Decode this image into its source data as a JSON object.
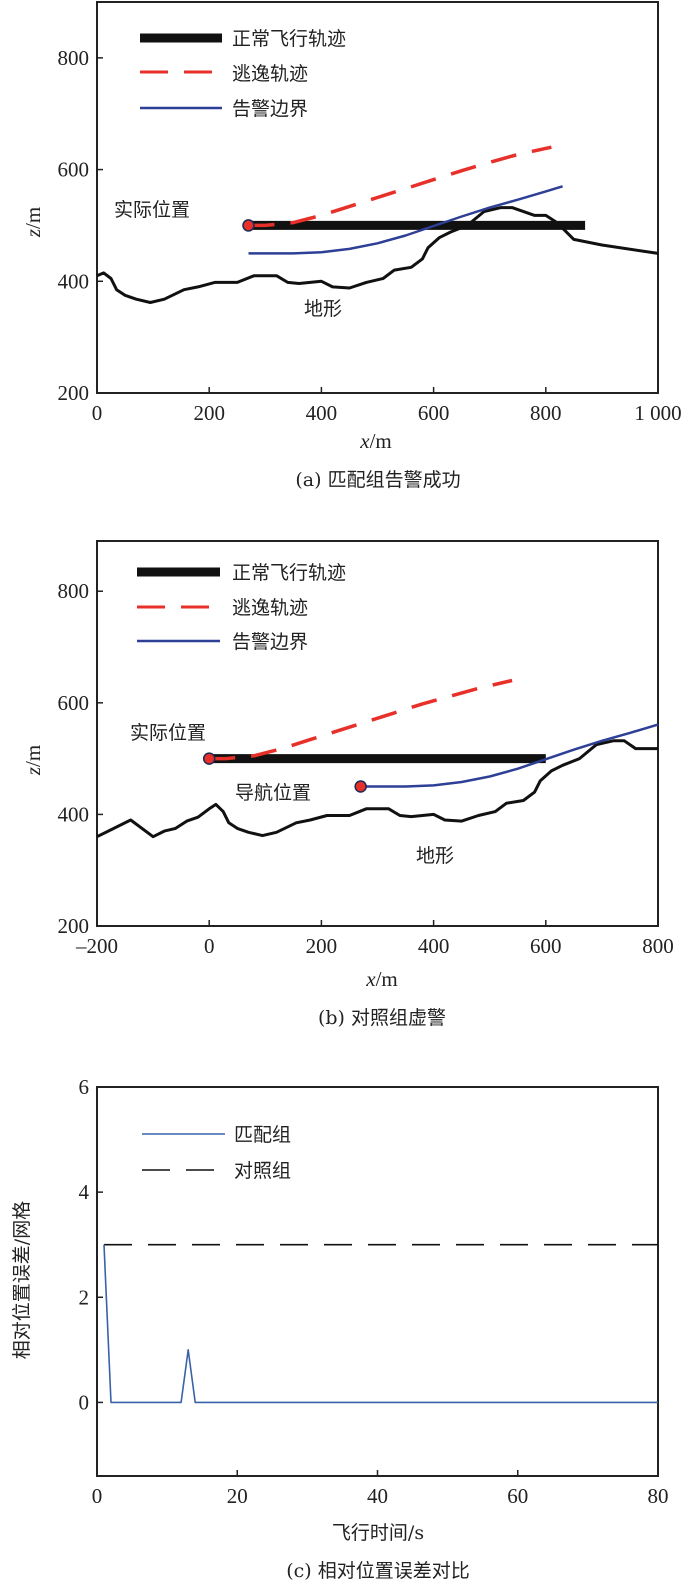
{
  "colors": {
    "normal": "#111111",
    "escape": "#e8302a",
    "boundary": "#2e3f96",
    "terrain": "#111111",
    "marker_fill": "#e8302a",
    "matched": "#3a62a8",
    "control": "#111111"
  },
  "chart_data": [
    {
      "type": "line",
      "caption": "(a) 匹配组告警成功",
      "xlabel_italic": "x",
      "xlabel_unit": "/m",
      "ylabel_italic": "z",
      "ylabel_unit": "/m",
      "xlim": [
        0,
        1000
      ],
      "ylim": [
        200,
        900
      ],
      "xticks": [
        0,
        200,
        400,
        600,
        800,
        1000
      ],
      "xtick_labels": [
        "0",
        "200",
        "400",
        "600",
        "800",
        "1 000"
      ],
      "yticks": [
        200,
        400,
        600,
        800
      ],
      "ytick_labels": [
        "200",
        "400",
        "600",
        "800"
      ],
      "legend": [
        "正常飞行轨迹",
        "逃逸轨迹",
        "告警边界"
      ],
      "legend_position": "top-left",
      "annotations": {
        "actual_position": "实际位置",
        "terrain": "地形"
      },
      "series": {
        "normal": {
          "x": [
            270,
            870
          ],
          "y": [
            500,
            500
          ]
        },
        "escape": {
          "x": [
            270,
            300,
            350,
            400,
            450,
            500,
            550,
            600,
            650,
            700,
            750,
            810
          ],
          "y": [
            500,
            500,
            505,
            518,
            534,
            550,
            566,
            582,
            598,
            613,
            627,
            640
          ]
        },
        "boundary": {
          "x": [
            270,
            300,
            350,
            400,
            450,
            500,
            550,
            600,
            650,
            700,
            750,
            800,
            830
          ],
          "y": [
            450,
            450,
            450,
            452,
            458,
            468,
            482,
            499,
            516,
            532,
            546,
            561,
            570
          ]
        },
        "terrain": {
          "x": [
            0,
            12,
            25,
            35,
            50,
            70,
            95,
            120,
            155,
            180,
            210,
            250,
            280,
            320,
            340,
            360,
            400,
            420,
            450,
            480,
            510,
            530,
            560,
            580,
            590,
            610,
            630,
            660,
            690,
            720,
            740,
            780,
            800,
            820,
            850,
            900,
            1000
          ],
          "y": [
            410,
            415,
            405,
            385,
            375,
            368,
            362,
            368,
            385,
            390,
            398,
            398,
            410,
            410,
            398,
            396,
            400,
            390,
            388,
            398,
            405,
            420,
            425,
            440,
            460,
            478,
            488,
            500,
            525,
            532,
            532,
            518,
            518,
            505,
            475,
            465,
            450
          ]
        },
        "actual_marker": {
          "x": 270,
          "y": 500
        }
      }
    },
    {
      "type": "line",
      "caption": "(b) 对照组虚警",
      "xlabel_italic": "x",
      "xlabel_unit": "/m",
      "ylabel_italic": "z",
      "ylabel_unit": "/m",
      "xlim": [
        -200,
        800
      ],
      "ylim": [
        200,
        890
      ],
      "xticks": [
        -200,
        0,
        200,
        400,
        600,
        800
      ],
      "xtick_labels": [
        "–200",
        "0",
        "200",
        "400",
        "600",
        "800"
      ],
      "yticks": [
        200,
        400,
        600,
        800
      ],
      "ytick_labels": [
        "200",
        "400",
        "600",
        "800"
      ],
      "legend": [
        "正常飞行轨迹",
        "逃逸轨迹",
        "告警边界"
      ],
      "legend_position": "top-left",
      "annotations": {
        "actual_position": "实际位置",
        "nav_position": "导航位置",
        "terrain": "地形"
      },
      "series": {
        "normal": {
          "x": [
            0,
            600
          ],
          "y": [
            500,
            500
          ]
        },
        "escape": {
          "x": [
            0,
            30,
            80,
            130,
            180,
            230,
            280,
            330,
            380,
            430,
            480,
            540
          ],
          "y": [
            500,
            500,
            505,
            518,
            534,
            550,
            566,
            582,
            598,
            612,
            626,
            640
          ]
        },
        "boundary": {
          "x": [
            270,
            300,
            350,
            400,
            450,
            500,
            550,
            600,
            650,
            700,
            750,
            800
          ],
          "y": [
            450,
            450,
            450,
            452,
            458,
            468,
            482,
            499,
            516,
            532,
            546,
            561
          ]
        },
        "terrain": {
          "x": [
            -200,
            -170,
            -140,
            -100,
            -80,
            -60,
            -40,
            -20,
            0,
            12,
            25,
            35,
            50,
            70,
            95,
            120,
            155,
            180,
            210,
            250,
            280,
            320,
            340,
            360,
            400,
            420,
            450,
            480,
            510,
            530,
            560,
            580,
            590,
            610,
            630,
            660,
            690,
            720,
            740,
            760,
            800
          ],
          "y": [
            360,
            375,
            390,
            360,
            370,
            375,
            388,
            395,
            410,
            418,
            405,
            385,
            375,
            368,
            362,
            368,
            385,
            390,
            398,
            398,
            410,
            410,
            398,
            396,
            400,
            390,
            388,
            398,
            405,
            420,
            425,
            440,
            460,
            478,
            488,
            500,
            525,
            532,
            532,
            518,
            518
          ]
        },
        "actual_marker": {
          "x": 0,
          "y": 500
        },
        "nav_marker": {
          "x": 270,
          "y": 450
        }
      }
    },
    {
      "type": "line",
      "caption": "(c) 相对位置误差对比",
      "xlabel": "飞行时间/s",
      "ylabel": "相对位置误差/网格",
      "xlim": [
        0,
        80
      ],
      "ylim": [
        -1.4,
        6
      ],
      "xticks": [
        0,
        20,
        40,
        60,
        80
      ],
      "xtick_labels": [
        "0",
        "20",
        "40",
        "60",
        "80"
      ],
      "yticks": [
        0,
        2,
        4,
        6
      ],
      "ytick_labels": [
        "0",
        "2",
        "4",
        "6"
      ],
      "legend": [
        "匹配组",
        "对照组"
      ],
      "legend_position": "top-left",
      "series": [
        {
          "name": "匹配组",
          "x": [
            1,
            2,
            12,
            13,
            14,
            80
          ],
          "y": [
            3,
            0,
            0,
            1,
            0,
            0
          ]
        },
        {
          "name": "对照组",
          "x": [
            1,
            80
          ],
          "y": [
            3,
            3
          ]
        }
      ]
    }
  ]
}
